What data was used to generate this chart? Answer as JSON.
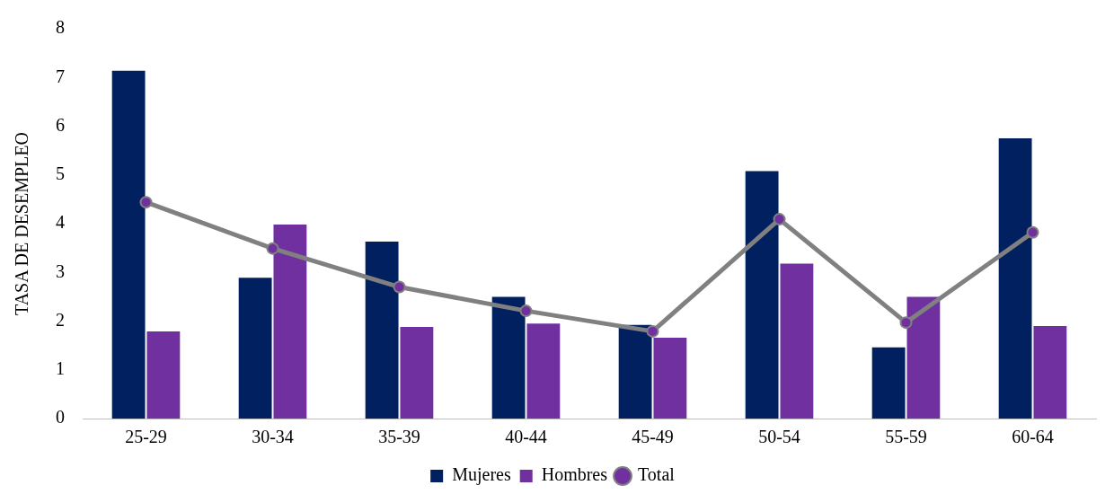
{
  "chart_data": {
    "type": "bar",
    "ylabel": "TASA DE DESEMPLEO",
    "categories": [
      "25-29",
      "30-34",
      "35-39",
      "40-44",
      "45-49",
      "50-54",
      "55-59",
      "60-64"
    ],
    "series": [
      {
        "name": "Mujeres",
        "color": "#002060",
        "values": [
          7.14,
          2.89,
          3.63,
          2.5,
          1.92,
          5.08,
          1.46,
          5.75
        ]
      },
      {
        "name": "Hombres",
        "color": "#7030a0",
        "values": [
          1.79,
          3.98,
          1.88,
          1.95,
          1.66,
          3.18,
          2.5,
          1.9
        ]
      },
      {
        "name": "Total",
        "type": "line",
        "color": "#808080",
        "marker": "circle",
        "line_style": "solid",
        "values": [
          4.44,
          3.49,
          2.7,
          2.21,
          1.79,
          4.09,
          1.97,
          3.82
        ]
      }
    ],
    "ylim": [
      0,
      8
    ],
    "yticks": [
      0,
      1,
      2,
      3,
      4,
      5,
      6,
      7,
      8
    ],
    "grid": false,
    "legend": "bottom"
  }
}
